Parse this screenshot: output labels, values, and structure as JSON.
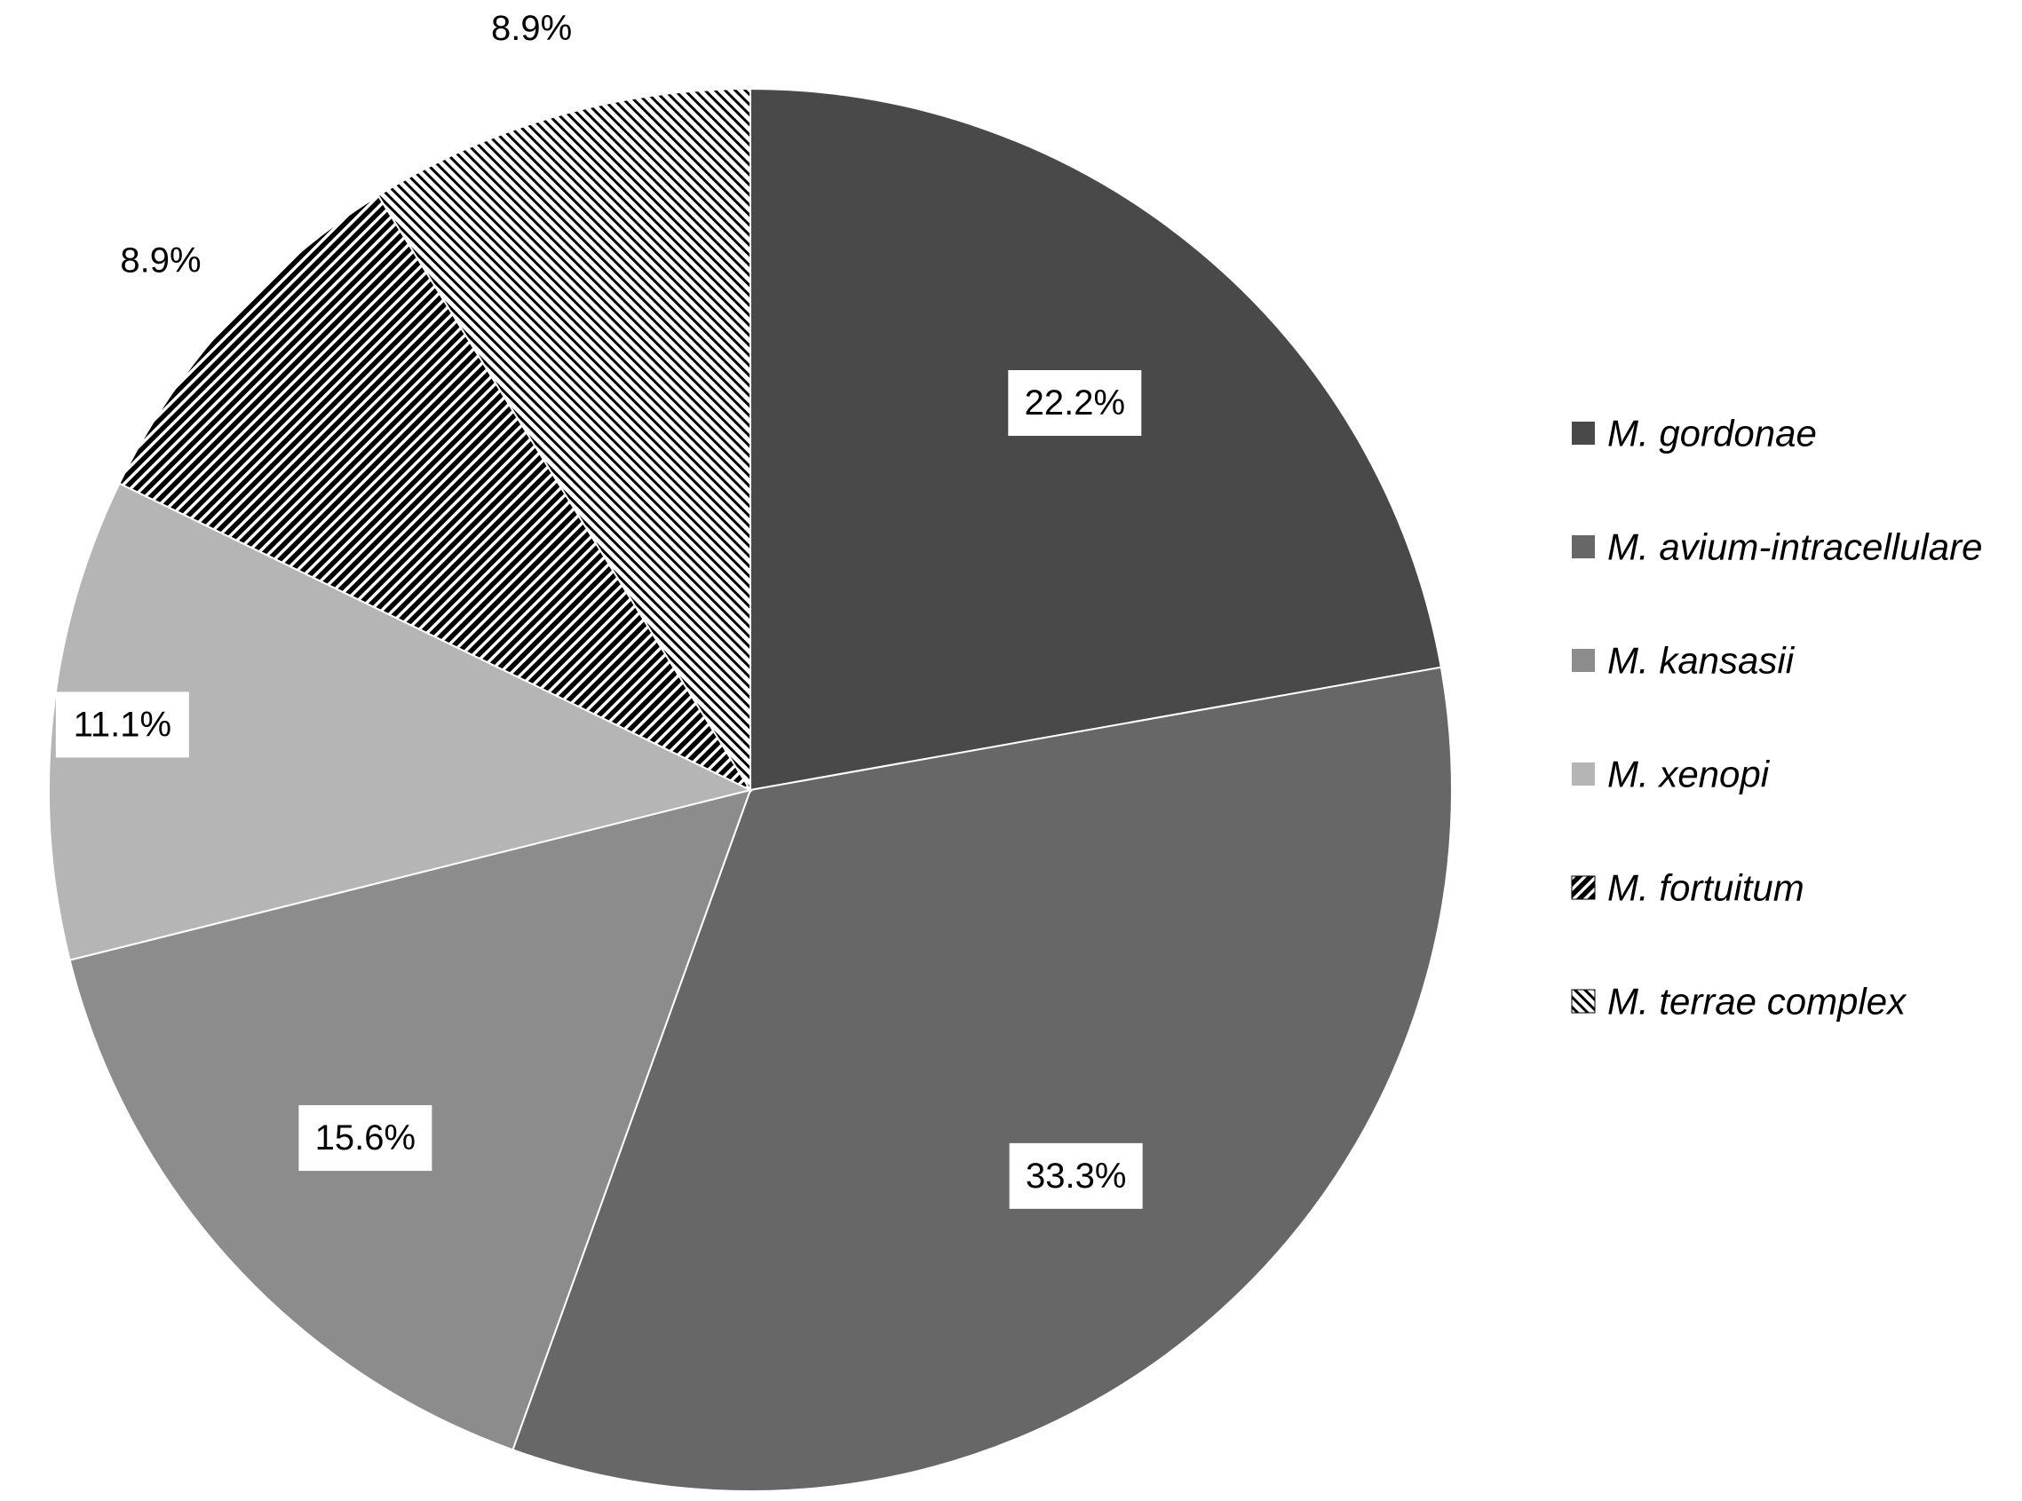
{
  "chart_data": {
    "type": "pie",
    "start_angle_deg": 0,
    "direction": "clockwise",
    "slices": [
      {
        "name": "M. gordonae",
        "value": 22.2,
        "label": "22.2%",
        "fill": "#494949",
        "pattern": "solid",
        "label_box": true
      },
      {
        "name": "M. avium-intracellulare",
        "value": 33.3,
        "label": "33.3%",
        "fill": "#676767",
        "pattern": "solid",
        "label_box": true
      },
      {
        "name": "M. kansasii",
        "value": 15.6,
        "label": "15.6%",
        "fill": "#8c8c8c",
        "pattern": "solid",
        "label_box": true
      },
      {
        "name": "M. xenopi",
        "value": 11.1,
        "label": "11.1%",
        "fill": "#b5b5b5",
        "pattern": "solid",
        "label_box": true
      },
      {
        "name": "M. fortuitum",
        "value": 8.9,
        "label": "8.9%",
        "fill": "#000000",
        "pattern": "dense-diagonal",
        "label_box": false
      },
      {
        "name": "M. terrae complex",
        "value": 8.9,
        "label": "8.9%",
        "fill": "#000000",
        "pattern": "light-diagonal",
        "label_box": false
      }
    ],
    "legend": {
      "position": "right"
    }
  }
}
